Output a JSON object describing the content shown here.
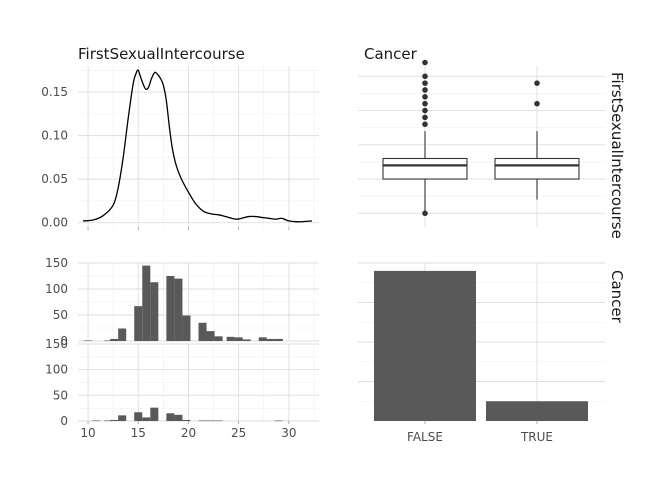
{
  "chart_data": [
    {
      "type": "line",
      "panel": "top-left",
      "title": "FirstSexualIntercourse",
      "xlim": [
        9,
        33
      ],
      "ylim": [
        -0.005,
        0.18
      ],
      "yticks": [
        0.0,
        0.05,
        0.1,
        0.15
      ],
      "ytick_labels": [
        "0.00",
        "0.05",
        "0.10",
        "0.15"
      ],
      "series": [
        {
          "x": [
            9.5,
            10.5,
            11.5,
            12.5,
            13,
            13.5,
            14,
            14.5,
            14.8,
            15,
            15.3,
            15.7,
            16,
            16.3,
            16.6,
            16.8,
            17.2,
            17.5,
            17.8,
            18.1,
            18.4,
            18.8,
            19.3,
            20,
            20.7,
            21.5,
            22.3,
            23,
            23.7,
            24.3,
            24.8,
            25.3,
            26,
            26.7,
            27.3,
            28,
            28.7,
            29.3,
            30,
            31,
            32.3
          ],
          "y": [
            0.002,
            0.003,
            0.008,
            0.02,
            0.04,
            0.075,
            0.12,
            0.16,
            0.172,
            0.175,
            0.165,
            0.154,
            0.155,
            0.165,
            0.172,
            0.172,
            0.166,
            0.158,
            0.14,
            0.11,
            0.085,
            0.065,
            0.05,
            0.035,
            0.022,
            0.013,
            0.01,
            0.009,
            0.007,
            0.005,
            0.004,
            0.005,
            0.007,
            0.007,
            0.006,
            0.005,
            0.004,
            0.005,
            0.002,
            0.001,
            0.002
          ]
        }
      ]
    },
    {
      "type": "box",
      "panel": "top-right",
      "title": "Cancer",
      "strip_label": "FirstSexualIntercourse",
      "categories": [
        "FALSE",
        "TRUE"
      ],
      "ylim": [
        8,
        31.5
      ],
      "boxes": [
        {
          "category": "FALSE",
          "min": 10,
          "q1": 15,
          "median": 17,
          "q3": 18,
          "max": 22,
          "outliers": [
            23,
            24,
            25,
            26,
            27,
            28,
            29,
            30,
            32
          ]
        },
        {
          "category": "TRUE",
          "min": 12,
          "q1": 15,
          "median": 17,
          "q3": 18,
          "max": 22,
          "outliers": [
            26,
            29
          ]
        }
      ]
    },
    {
      "type": "bar",
      "panel": "bottom-left",
      "xlim": [
        9,
        33
      ],
      "xticks": [
        10,
        15,
        20,
        25,
        30
      ],
      "xtick_labels": [
        "10",
        "15",
        "20",
        "25",
        "30"
      ],
      "ylim": [
        0,
        150
      ],
      "yticks": [
        0,
        50,
        100,
        150
      ],
      "ytick_labels": [
        "0",
        "50",
        "100",
        "150"
      ],
      "bin_width": 0.8,
      "series": [
        {
          "name": "FALSE",
          "x": [
            10,
            12,
            12.6,
            13.4,
            15,
            15.8,
            16.6,
            18.2,
            19,
            19.8,
            21.4,
            22.2,
            23,
            24.2,
            25,
            25.8,
            27.4,
            28.2,
            29
          ],
          "values": [
            1,
            1,
            4,
            24,
            67,
            145,
            113,
            125,
            120,
            49,
            35,
            19,
            9,
            8,
            7,
            3,
            7,
            4,
            4
          ]
        },
        {
          "name": "TRUE",
          "x": [
            10.8,
            12,
            12.6,
            13.4,
            15,
            15.8,
            16.6,
            18.2,
            19,
            19.8,
            21.4,
            22.2,
            23,
            29
          ],
          "values": [
            1,
            1,
            2,
            11,
            17,
            7,
            26,
            15,
            12,
            2,
            1,
            1,
            1,
            1
          ]
        }
      ]
    },
    {
      "type": "bar",
      "panel": "bottom-right",
      "strip_label": "Cancer",
      "categories": [
        "FALSE",
        "TRUE"
      ],
      "ylim": [
        0,
        800
      ],
      "values": [
        760,
        100
      ]
    }
  ]
}
